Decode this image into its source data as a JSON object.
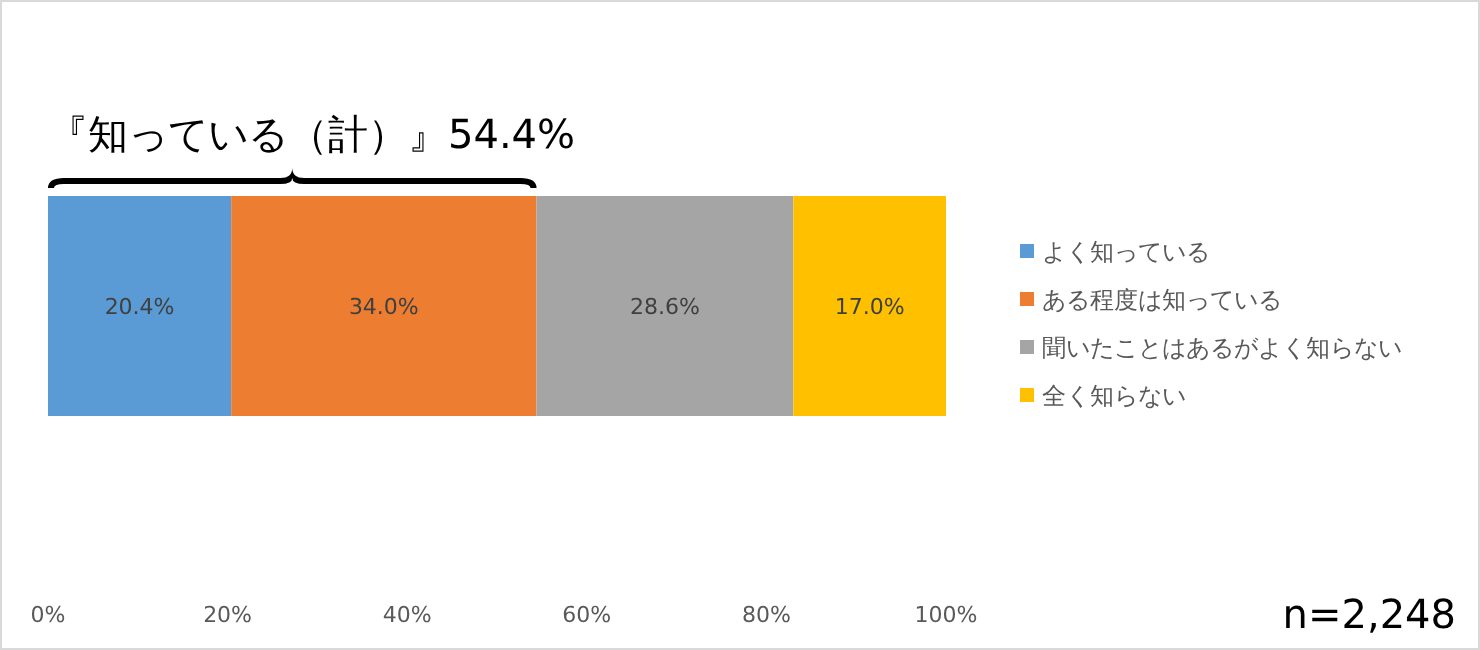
{
  "chart_data": {
    "type": "bar",
    "orientation": "horizontal",
    "stacked": true,
    "categories": [
      null
    ],
    "series": [
      {
        "name": "よく知っている",
        "color": "#5b9bd5",
        "values": [
          20.4
        ],
        "value_labels": [
          "20.4%"
        ]
      },
      {
        "name": "ある程度は知っている",
        "color": "#ed7d31",
        "values": [
          34.0
        ],
        "value_labels": [
          "34.0%"
        ]
      },
      {
        "name": "聞いたことはあるがよく知らない",
        "color": "#a5a5a5",
        "values": [
          28.6
        ],
        "value_labels": [
          "28.6%"
        ]
      },
      {
        "name": "全く知らない",
        "color": "#ffc000",
        "values": [
          17.0
        ],
        "value_labels": [
          "17.0%"
        ]
      }
    ],
    "xlim": [
      0,
      100
    ],
    "xticks": [
      {
        "value": 0,
        "label": "0%"
      },
      {
        "value": 20,
        "label": "20%"
      },
      {
        "value": 40,
        "label": "40%"
      },
      {
        "value": 60,
        "label": "60%"
      },
      {
        "value": 80,
        "label": "80%"
      },
      {
        "value": 100,
        "label": "100%"
      }
    ],
    "legend": "right",
    "grid": false,
    "annotations": [
      "『知っている（計）』54.4%",
      "n=2,248"
    ]
  }
}
